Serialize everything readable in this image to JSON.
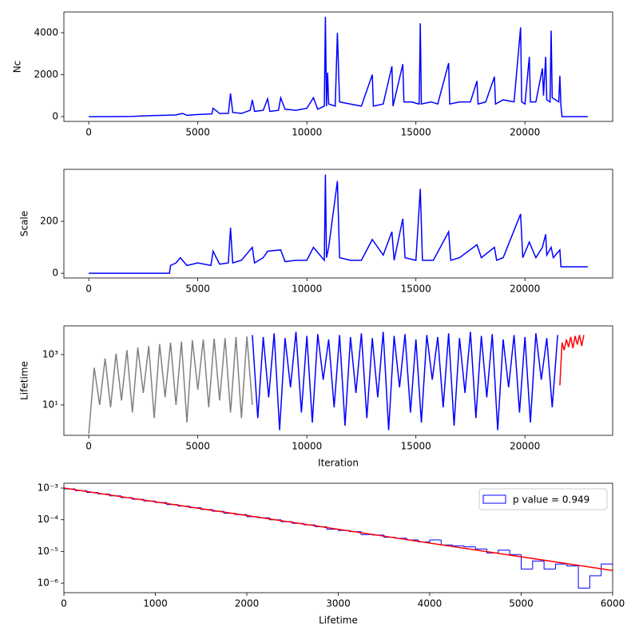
{
  "chart_data": [
    {
      "type": "line",
      "ylabel": "Nc",
      "xlim": [
        -1140,
        24020
      ],
      "ylim": [
        -230,
        4990
      ],
      "xticks": [
        0,
        5000,
        10000,
        15000,
        20000
      ],
      "yticks": [
        0,
        2000,
        4000
      ],
      "series": [
        {
          "color": "#0000ff",
          "x": [
            0,
            1000,
            2000,
            2500,
            3000,
            3500,
            4000,
            4300,
            4500,
            5000,
            5500,
            5650,
            5700,
            6000,
            6400,
            6500,
            6600,
            7000,
            7400,
            7500,
            7600,
            8000,
            8200,
            8300,
            8700,
            8800,
            9000,
            9500,
            10000,
            10300,
            10500,
            10800,
            10850,
            10900,
            10950,
            11000,
            11300,
            11400,
            11500,
            12000,
            12500,
            13000,
            13050,
            13500,
            13900,
            13950,
            14400,
            14450,
            14800,
            15150,
            15200,
            15250,
            15700,
            16000,
            16500,
            16550,
            17000,
            17500,
            17800,
            17850,
            18200,
            18600,
            18650,
            19000,
            19500,
            19800,
            19850,
            20000,
            20200,
            20250,
            20500,
            20800,
            20850,
            20950,
            21000,
            21150,
            21200,
            21250,
            21550,
            21600,
            21650,
            21700,
            22880
          ],
          "values": [
            0,
            0,
            10,
            30,
            50,
            60,
            80,
            150,
            60,
            100,
            120,
            130,
            400,
            150,
            150,
            1100,
            200,
            150,
            300,
            800,
            250,
            300,
            850,
            250,
            300,
            900,
            350,
            300,
            400,
            900,
            350,
            500,
            4760,
            500,
            2100,
            600,
            500,
            4000,
            700,
            600,
            500,
            2000,
            500,
            600,
            2400,
            500,
            2500,
            700,
            700,
            600,
            4450,
            600,
            700,
            600,
            2550,
            600,
            700,
            700,
            1700,
            600,
            700,
            1900,
            600,
            800,
            700,
            4250,
            700,
            600,
            2850,
            700,
            700,
            2300,
            1000,
            2850,
            800,
            700,
            4100,
            900,
            700,
            1950,
            500,
            0,
            0
          ]
        }
      ]
    },
    {
      "type": "line",
      "ylabel": "Scale",
      "xlim": [
        -1140,
        24020
      ],
      "ylim": [
        -18,
        400
      ],
      "xticks": [
        0,
        5000,
        10000,
        15000,
        20000
      ],
      "yticks": [
        0,
        200
      ],
      "series": [
        {
          "color": "#0000ff",
          "x": [
            0,
            3700,
            3750,
            4000,
            4200,
            4500,
            5000,
            5600,
            5700,
            6000,
            6400,
            6500,
            6600,
            7000,
            7500,
            7600,
            8000,
            8200,
            8800,
            9000,
            9500,
            10000,
            10300,
            10800,
            10850,
            10900,
            11000,
            11400,
            11500,
            12000,
            12500,
            13000,
            13500,
            13900,
            14000,
            14400,
            14500,
            15000,
            15200,
            15300,
            15800,
            16500,
            16600,
            17000,
            17800,
            18000,
            18600,
            18700,
            19000,
            19800,
            19900,
            20200,
            20500,
            20800,
            20950,
            21000,
            21200,
            21300,
            21600,
            21650,
            22880
          ],
          "values": [
            0,
            0,
            30,
            40,
            60,
            30,
            40,
            30,
            85,
            35,
            40,
            175,
            40,
            50,
            100,
            40,
            60,
            85,
            90,
            45,
            50,
            50,
            100,
            50,
            380,
            60,
            100,
            355,
            60,
            50,
            50,
            130,
            70,
            160,
            50,
            210,
            60,
            50,
            325,
            50,
            50,
            160,
            50,
            60,
            110,
            60,
            100,
            50,
            60,
            228,
            60,
            120,
            60,
            100,
            150,
            70,
            100,
            60,
            90,
            25,
            25
          ]
        }
      ]
    },
    {
      "type": "line",
      "ylabel": "Lifetime",
      "xlabel": "Iteration",
      "ylog": true,
      "xlim": [
        -1140,
        24020
      ],
      "ylim": [
        0.62,
        13800
      ],
      "xticks": [
        0,
        5000,
        10000,
        15000,
        20000
      ],
      "yticks": [
        {
          "value": 10,
          "label": "10¹"
        },
        {
          "value": 1000,
          "label": "10³"
        }
      ],
      "series": [
        {
          "color": "#808080",
          "x": [
            0,
            250,
            500,
            750,
            1000,
            1250,
            1500,
            1750,
            2000,
            2250,
            2500,
            2750,
            3000,
            3250,
            3500,
            3750,
            4000,
            4250,
            4500,
            4750,
            5000,
            5250,
            5500,
            5750,
            6000,
            6250,
            6500,
            6750,
            7000,
            7250,
            7500
          ],
          "values": [
            0.7,
            300,
            10,
            700,
            8,
            1100,
            15,
            1500,
            5,
            1900,
            30,
            2200,
            3,
            2600,
            20,
            3000,
            10,
            3300,
            2,
            3700,
            40,
            4000,
            8,
            4300,
            15,
            4500,
            5,
            5000,
            3,
            5200,
            10
          ]
        },
        {
          "color": "#0000ff",
          "x": [
            7500,
            7750,
            8000,
            8250,
            8500,
            8750,
            9000,
            9250,
            9500,
            9750,
            10000,
            10250,
            10500,
            10750,
            11000,
            11250,
            11500,
            11750,
            12000,
            12250,
            12500,
            12750,
            13000,
            13250,
            13500,
            13750,
            14000,
            14250,
            14500,
            14750,
            15000,
            15250,
            15500,
            15750,
            16000,
            16250,
            16500,
            16750,
            17000,
            17250,
            17500,
            17750,
            18000,
            18250,
            18500,
            18750,
            19000,
            19250,
            19500,
            19750,
            20000,
            20250,
            20500,
            20750,
            21000,
            21250,
            21500
          ],
          "values": [
            6000,
            3,
            5000,
            20,
            7000,
            1,
            4500,
            50,
            8000,
            5,
            5500,
            2,
            6500,
            100,
            4000,
            8,
            6000,
            1.5,
            5000,
            30,
            7000,
            3,
            4500,
            20,
            8000,
            1,
            5500,
            50,
            6500,
            5,
            4000,
            2,
            6000,
            100,
            5000,
            8,
            7000,
            1.5,
            4500,
            30,
            8000,
            3,
            5500,
            20,
            6500,
            1,
            4000,
            50,
            6000,
            5,
            5000,
            2,
            7000,
            100,
            4500,
            8,
            6000
          ]
        },
        {
          "color": "#ff0000",
          "x": [
            21600,
            21700,
            21800,
            21900,
            22000,
            22100,
            22200,
            22300,
            22400,
            22500,
            22600,
            22700
          ],
          "values": [
            60,
            3000,
            1500,
            4000,
            2000,
            5000,
            1800,
            5500,
            2500,
            6000,
            2200,
            6000
          ]
        }
      ]
    },
    {
      "type": "histogram",
      "xlabel": "Lifetime",
      "ylog": true,
      "xlim": [
        0,
        6000
      ],
      "ylim": [
        5e-07,
        0.00142
      ],
      "xticks": [
        0,
        1000,
        2000,
        3000,
        4000,
        5000,
        6000
      ],
      "yticks": [
        {
          "value": 0.001,
          "label": "10⁻³"
        },
        {
          "value": 0.0001,
          "label": "10⁻⁴"
        },
        {
          "value": 1e-05,
          "label": "10⁻⁵"
        },
        {
          "value": 1e-06,
          "label": "10⁻⁶"
        }
      ],
      "name": "p value = 0.949",
      "color": "#0000ff",
      "legend": "upper right",
      "bins": [
        0,
        125,
        250,
        375,
        500,
        625,
        750,
        875,
        1000,
        1125,
        1250,
        1375,
        1500,
        1625,
        1750,
        1875,
        2000,
        2125,
        2250,
        2375,
        2500,
        2625,
        2750,
        2875,
        3000,
        3125,
        3250,
        3375,
        3500,
        3625,
        3750,
        3875,
        4000,
        4125,
        4250,
        4375,
        4500,
        4625,
        4750,
        4875,
        5000,
        5125,
        5250,
        5375,
        5500,
        5625,
        5750,
        5875,
        6000
      ],
      "values": [
        0.00094,
        0.00083,
        0.00073,
        0.00065,
        0.00057,
        0.0005,
        0.00044,
        0.00039,
        0.00035,
        0.0003,
        0.00027,
        0.00024,
        0.00021,
        0.000185,
        0.00016,
        0.000145,
        0.000125,
        0.000115,
        0.0001,
        8.7e-05,
        7.7e-05,
        6.9e-05,
        6e-05,
        5e-05,
        4.6e-05,
        4.2e-05,
        3.4e-05,
        3.3e-05,
        2.8e-05,
        2.6e-05,
        2.3e-05,
        2e-05,
        2.3e-05,
        1.6e-05,
        1.5e-05,
        1.4e-05,
        1.2e-05,
        9e-06,
        1.1e-05,
        8e-06,
        2.8e-06,
        5e-06,
        2.8e-06,
        4e-06,
        3.5e-06,
        7e-07,
        1.7e-06,
        4e-06
      ],
      "fit": {
        "color": "#ff0000",
        "x": [
          0,
          6000
        ],
        "values": [
          0.001,
          2.5e-06
        ]
      }
    }
  ]
}
